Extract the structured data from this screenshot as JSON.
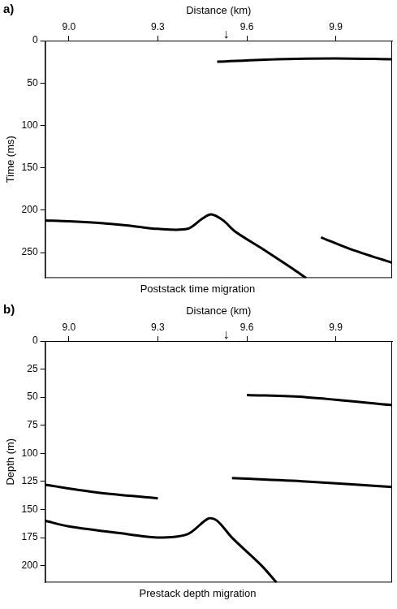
{
  "chart_data": [
    {
      "type": "line",
      "panel": "a)",
      "title": "Poststack time migration",
      "x_label": "Distance (km)",
      "y_label": "Time (ms)",
      "xlim": [
        8.92,
        10.09
      ],
      "xticks": [
        {
          "value": 9,
          "label": "9.0"
        },
        9.3,
        9.6,
        9.9
      ],
      "ylim": [
        280,
        0
      ],
      "yticks": [
        0,
        50,
        100,
        150,
        200,
        250
      ],
      "grid": false,
      "annotations": [
        {
          "x": 9.53,
          "label": "↓"
        }
      ],
      "series": [
        {
          "color": "#000000",
          "x": [
            8.92,
            9.0,
            9.1,
            9.2,
            9.3,
            9.4,
            9.45,
            9.48,
            9.52,
            9.56,
            9.65,
            9.75,
            9.8
          ],
          "values": [
            212,
            213,
            215,
            218,
            222,
            222,
            210,
            205,
            212,
            225,
            245,
            268,
            280
          ]
        },
        {
          "color": "#000000",
          "x": [
            9.85,
            9.95,
            10.09
          ],
          "values": [
            232,
            246,
            262
          ]
        },
        {
          "color": "#000000",
          "x": [
            9.5,
            9.7,
            9.9,
            10.09
          ],
          "values": [
            25,
            22,
            21,
            22
          ]
        }
      ]
    },
    {
      "type": "line",
      "panel": "b)",
      "title": "Prestack depth migration",
      "x_label": "Distance (km)",
      "y_label": "Depth (m)",
      "xlim": [
        8.92,
        10.09
      ],
      "xticks": [
        {
          "value": 9,
          "label": "9.0"
        },
        9.3,
        9.6,
        9.9
      ],
      "ylim": [
        215,
        0
      ],
      "yticks": [
        0,
        25,
        50,
        75,
        100,
        125,
        150,
        175,
        200
      ],
      "grid": false,
      "annotations": [
        {
          "x": 9.53,
          "label": "↓"
        }
      ],
      "series": [
        {
          "color": "#000000",
          "x": [
            8.92,
            9.0,
            9.2,
            9.3,
            9.4,
            9.47,
            9.5,
            9.55,
            9.65,
            9.7
          ],
          "values": [
            160,
            165,
            172,
            175,
            172,
            158,
            160,
            175,
            200,
            215
          ]
        },
        {
          "color": "#000000",
          "x": [
            9.55,
            9.8,
            10.09
          ],
          "values": [
            122,
            125,
            130
          ]
        },
        {
          "color": "#000000",
          "x": [
            9.6,
            9.8,
            10.09
          ],
          "values": [
            48,
            50,
            57
          ]
        },
        {
          "color": "#000000",
          "x": [
            8.92,
            9.1,
            9.3
          ],
          "values": [
            128,
            135,
            140
          ]
        }
      ]
    }
  ]
}
